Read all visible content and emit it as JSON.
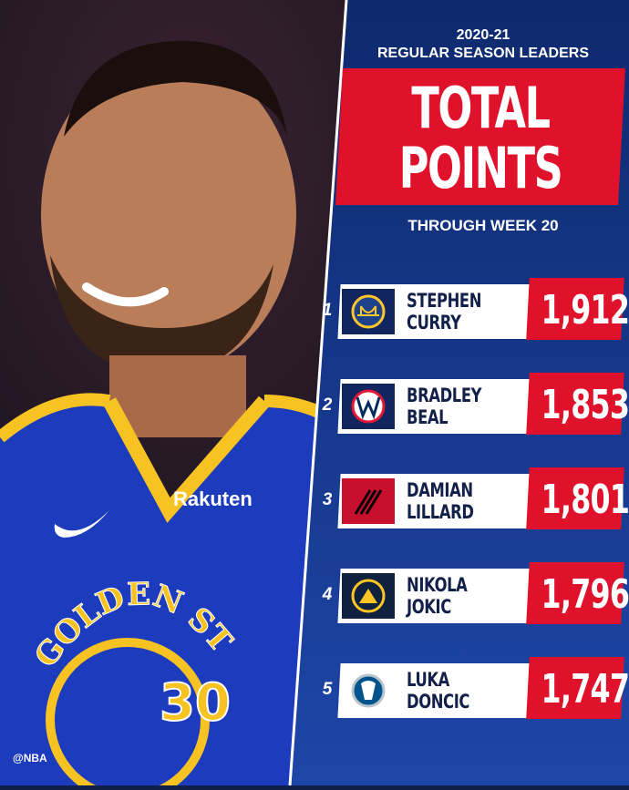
{
  "header": {
    "season": "2020-21",
    "subtitle": "REGULAR SEASON LEADERS",
    "title_line1": "TOTAL",
    "title_line2": "POINTS",
    "through": "THROUGH WEEK 20"
  },
  "colors": {
    "panel_blue": "#1a3a8a",
    "accent_red": "#e0112b",
    "card_white": "#ffffff"
  },
  "jersey": {
    "team_text": "GOLDEN STATE",
    "number": "30",
    "sponsor": "Rakuten"
  },
  "leaders": [
    {
      "rank": "1",
      "first": "STEPHEN",
      "last": "CURRY",
      "points": "1,912",
      "logo": "warriors-logo"
    },
    {
      "rank": "2",
      "first": "BRADLEY",
      "last": "BEAL",
      "points": "1,853",
      "logo": "wizards-logo"
    },
    {
      "rank": "3",
      "first": "DAMIAN",
      "last": "LILLARD",
      "points": "1,801",
      "logo": "trail-blazers-logo"
    },
    {
      "rank": "4",
      "first": "NIKOLA",
      "last": "JOKIC",
      "points": "1,796",
      "logo": "nuggets-logo"
    },
    {
      "rank": "5",
      "first": "LUKA",
      "last": "DONCIC",
      "points": "1,747",
      "logo": "mavericks-logo"
    }
  ],
  "credit": "@NBA"
}
